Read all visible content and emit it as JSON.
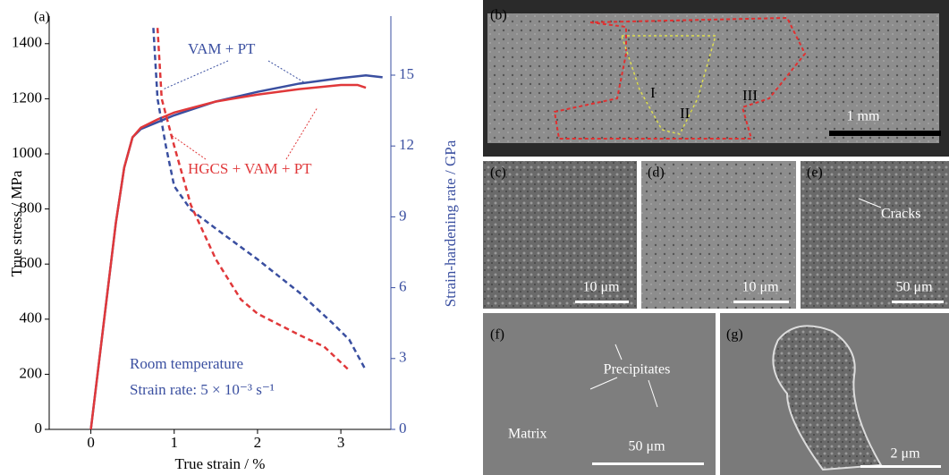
{
  "chart_data": {
    "type": "line",
    "panel_label": "(a)",
    "x_label": "True strain / %",
    "y_label": "True stress / MPa",
    "y2_label": "Strain-hardening rate / GPa",
    "xlim": [
      -0.5,
      3.6
    ],
    "xticks": [
      0,
      1,
      2,
      3
    ],
    "ylim": [
      0,
      1500
    ],
    "yticks": [
      0,
      200,
      400,
      600,
      800,
      1000,
      1200,
      1400
    ],
    "y2lim": [
      0,
      17.5
    ],
    "y2ticks": [
      0,
      3,
      6,
      9,
      12,
      15
    ],
    "y2_color": "#3a4fa0",
    "annotations": [
      "VAM + PT",
      "HGCS + VAM + PT",
      "Room temperature",
      "Strain rate: 5 × 10⁻³ s⁻¹"
    ],
    "annotation_colors": [
      "#3a4fa0",
      "#e0383a",
      "#3a4fa0",
      "#3a4fa0"
    ],
    "series": [
      {
        "color": "#3a4fa0",
        "linestyle": "solid",
        "x": [
          0,
          0.1,
          0.2,
          0.3,
          0.4,
          0.5,
          0.6,
          0.8,
          1,
          1.5,
          2,
          2.5,
          3,
          3.3,
          3.5
        ],
        "values": [
          0,
          250,
          500,
          750,
          950,
          1060,
          1090,
          1115,
          1140,
          1190,
          1225,
          1255,
          1275,
          1285,
          1278
        ]
      },
      {
        "color": "#e0383a",
        "linestyle": "solid",
        "x": [
          0,
          0.1,
          0.2,
          0.3,
          0.4,
          0.5,
          0.6,
          0.8,
          1,
          1.5,
          2,
          2.5,
          3,
          3.2,
          3.3
        ],
        "values": [
          0,
          250,
          500,
          750,
          950,
          1060,
          1095,
          1125,
          1150,
          1190,
          1215,
          1235,
          1250,
          1250,
          1240
        ]
      },
      {
        "color": "#3a4fa0",
        "linestyle": "dashed",
        "axis": "y2",
        "x": [
          0.75,
          0.8,
          0.9,
          1.0,
          1.2,
          1.5,
          2,
          2.5,
          2.9,
          3.1,
          3.3
        ],
        "values": [
          17,
          14,
          12,
          10.3,
          9.3,
          8.5,
          7.2,
          5.8,
          4.5,
          3.8,
          2.5
        ]
      },
      {
        "color": "#e0383a",
        "linestyle": "dashed",
        "axis": "y2",
        "x": [
          0.8,
          0.85,
          1,
          1.2,
          1.5,
          1.8,
          2,
          2.5,
          2.8,
          3.1
        ],
        "values": [
          17,
          14,
          12,
          9.5,
          7.2,
          5.5,
          4.9,
          4.0,
          3.5,
          2.5
        ]
      }
    ]
  },
  "panels": {
    "b": {
      "label": "(b)",
      "regions": [
        "I",
        "II",
        "III"
      ],
      "scale_bar": "1 mm"
    },
    "c": {
      "label": "(c)",
      "scale_bar": "10 μm"
    },
    "d": {
      "label": "(d)",
      "scale_bar": "10 μm"
    },
    "e": {
      "label": "(e)",
      "scale_bar": "50 μm",
      "annotation": "Cracks"
    },
    "f": {
      "label": "(f)",
      "scale_bar": "50 μm",
      "annotations": [
        "Precipitates",
        "Matrix"
      ]
    },
    "g": {
      "label": "(g)",
      "scale_bar": "2 μm"
    }
  }
}
